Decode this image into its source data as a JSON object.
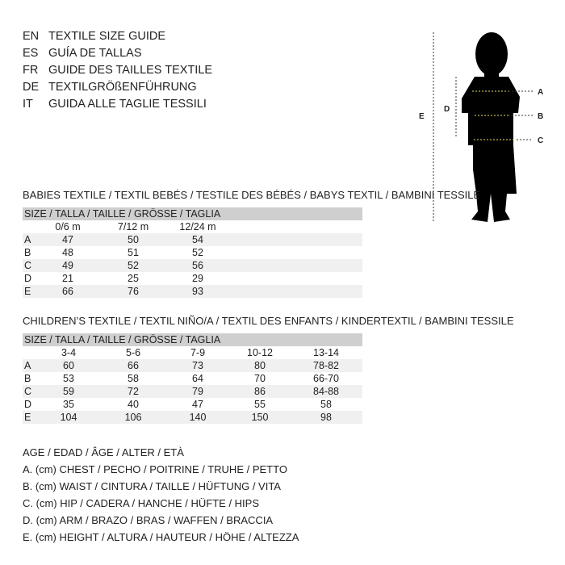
{
  "titles": [
    {
      "code": "EN",
      "text": "TEXTILE SIZE GUIDE"
    },
    {
      "code": "ES",
      "text": "GUÍA DE TALLAS"
    },
    {
      "code": "FR",
      "text": "GUIDE DES TAILLES TEXTILE"
    },
    {
      "code": "DE",
      "text": "TEXTILGRÖßENFÜHRUNG"
    },
    {
      "code": "IT",
      "text": "GUIDA ALLE TAGLIE TESSILI"
    }
  ],
  "figure": {
    "labels": [
      "A",
      "B",
      "C",
      "D",
      "E"
    ],
    "silhouette_color": "#000000",
    "guide_color": "#e8e060"
  },
  "babies": {
    "title": "BABIES TEXTILE / TEXTIL BEBÉS / TESTILE DES BÉBÉS / BABYS TEXTIL / BAMBINI TESSILE",
    "header": "SIZE / TALLA / TAILLE / GRÖSSE / TAGLIA",
    "columns": [
      "0/6 m",
      "7/12 m",
      "12/24 m"
    ],
    "rows": [
      {
        "label": "A",
        "values": [
          "47",
          "50",
          "54"
        ]
      },
      {
        "label": "B",
        "values": [
          "48",
          "51",
          "52"
        ]
      },
      {
        "label": "C",
        "values": [
          "49",
          "52",
          "56"
        ]
      },
      {
        "label": "D",
        "values": [
          "21",
          "25",
          "29"
        ]
      },
      {
        "label": "E",
        "values": [
          "66",
          "76",
          "93"
        ]
      }
    ]
  },
  "children": {
    "title": "CHILDREN’S TEXTILE / TEXTIL NIÑO/A / TEXTIL DES ENFANTS / KINDERTEXTIL / BAMBINI TESSILE",
    "header": "SIZE / TALLA / TAILLE / GRÖSSE / TAGLIA",
    "columns": [
      "3-4",
      "5-6",
      "7-9",
      "10-12",
      "13-14"
    ],
    "rows": [
      {
        "label": "A",
        "values": [
          "60",
          "66",
          "73",
          "80",
          "78-82"
        ]
      },
      {
        "label": "B",
        "values": [
          "53",
          "58",
          "64",
          "70",
          "66-70"
        ]
      },
      {
        "label": "C",
        "values": [
          "59",
          "72",
          "79",
          "86",
          "84-88"
        ]
      },
      {
        "label": "D",
        "values": [
          "35",
          "40",
          "47",
          "55",
          "58"
        ]
      },
      {
        "label": "E",
        "values": [
          "104",
          "106",
          "140",
          "150",
          "98"
        ]
      }
    ]
  },
  "legend": [
    "AGE / EDAD / ÂGE / ALTER / ETÀ",
    "A. (cm) CHEST / PECHO / POITRINE / TRUHE / PETTO",
    "B. (cm) WAIST / CINTURA / TAILLE / HÜFTUNG / VITA",
    "C. (cm) HIP / CADERA / HANCHE / HÜFTE / HIPS",
    "D. (cm) ARM / BRAZO / BRAS / WAFFEN / BRACCIA",
    "E. (cm) HEIGHT / ALTURA / HAUTEUR / HÖHE / ALTEZZA"
  ]
}
